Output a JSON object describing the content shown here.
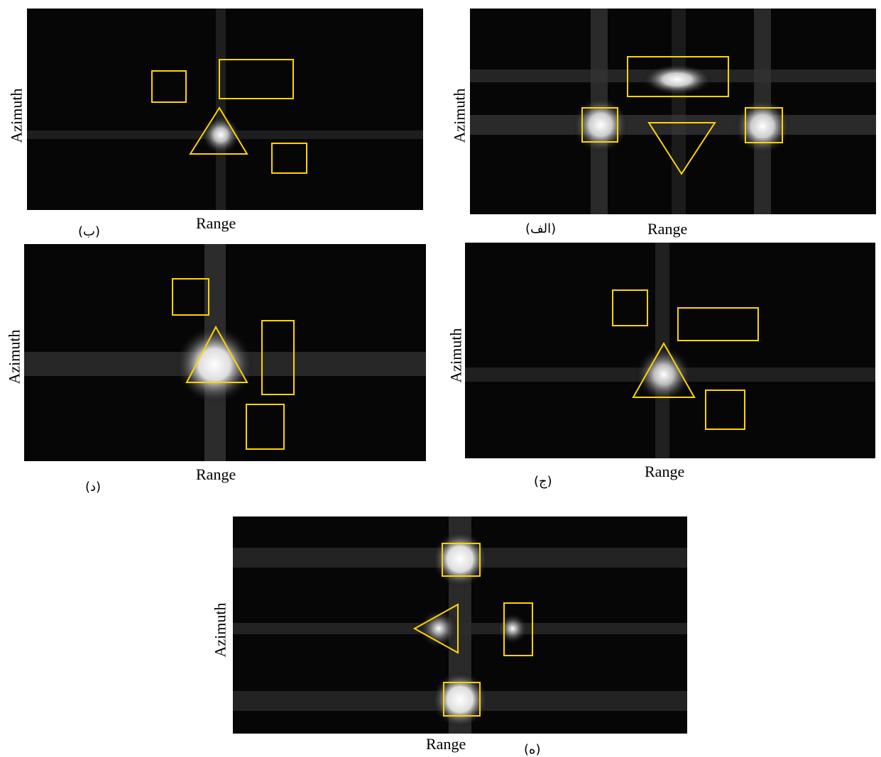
{
  "panels": [
    {
      "id": "a",
      "caption": "(الف)",
      "x_label": "Range",
      "y_label": "Azimuth"
    },
    {
      "id": "b",
      "caption": "(ب)",
      "x_label": "Range",
      "y_label": "Azimuth"
    },
    {
      "id": "c",
      "caption": "(ج)",
      "x_label": "Range",
      "y_label": "Azimuth"
    },
    {
      "id": "d",
      "caption": "(د)",
      "x_label": "Range",
      "y_label": "Azimuth"
    },
    {
      "id": "e",
      "caption": "(ه)",
      "x_label": "Range",
      "y_label": "Azimuth"
    }
  ],
  "colors": {
    "background": "#ffffff",
    "image_bg": "#060606",
    "marker": "#ffd400",
    "target": "#ffffff"
  }
}
